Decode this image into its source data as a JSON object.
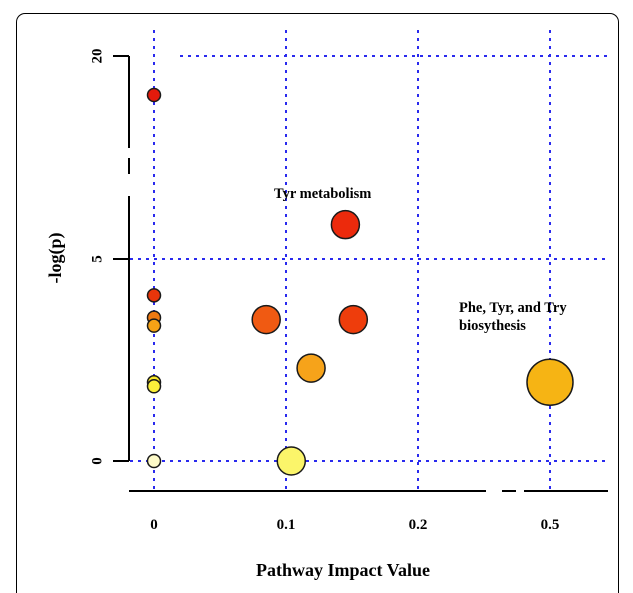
{
  "chart_data": {
    "type": "scatter",
    "title": "",
    "xlabel": "Pathway Impact Value",
    "ylabel": "-log(p)",
    "x_ticks": [
      "0",
      "0.1",
      "0.2",
      "0.5"
    ],
    "y_ticks": [
      "0",
      "5",
      "20"
    ],
    "x_axis_broken": true,
    "y_axis_broken": true,
    "grid": true,
    "grid_color": "#2a2aee",
    "points": [
      {
        "x": 0,
        "y": 18.5,
        "size": "small",
        "color": "#e41a0c"
      },
      {
        "x": 0,
        "y": 4.1,
        "size": "small",
        "color": "#e8350a"
      },
      {
        "x": 0,
        "y": 3.55,
        "size": "small",
        "color": "#f07a12"
      },
      {
        "x": 0,
        "y": 3.35,
        "size": "small",
        "color": "#f5a215"
      },
      {
        "x": 0,
        "y": 1.95,
        "size": "small",
        "color": "#f8e82a"
      },
      {
        "x": 0,
        "y": 1.85,
        "size": "small",
        "color": "#fbef3a"
      },
      {
        "x": 0,
        "y": 0,
        "size": "small",
        "color": "#fefbc8"
      },
      {
        "x": 0.085,
        "y": 3.5,
        "size": "medium",
        "color": "#f05a12"
      },
      {
        "x": 0.104,
        "y": 0,
        "size": "medium",
        "color": "#fbf56a"
      },
      {
        "x": 0.119,
        "y": 2.3,
        "size": "medium",
        "color": "#f6a31a"
      },
      {
        "x": 0.145,
        "y": 5.85,
        "size": "medium",
        "color": "#ec2a0c"
      },
      {
        "x": 0.151,
        "y": 3.5,
        "size": "medium",
        "color": "#ee3d0c"
      },
      {
        "x": 0.5,
        "y": 1.95,
        "size": "large",
        "color": "#f6b414"
      }
    ],
    "annotations": [
      {
        "text": "Tyr  metabolism",
        "near_x": 0.145,
        "near_y": 5.85
      },
      {
        "text": "Phe, Tyr, and Try",
        "near_x": 0.5,
        "near_y": 1.95
      },
      {
        "text": "biosythesis",
        "near_x": 0.5,
        "near_y": 1.95
      }
    ]
  }
}
